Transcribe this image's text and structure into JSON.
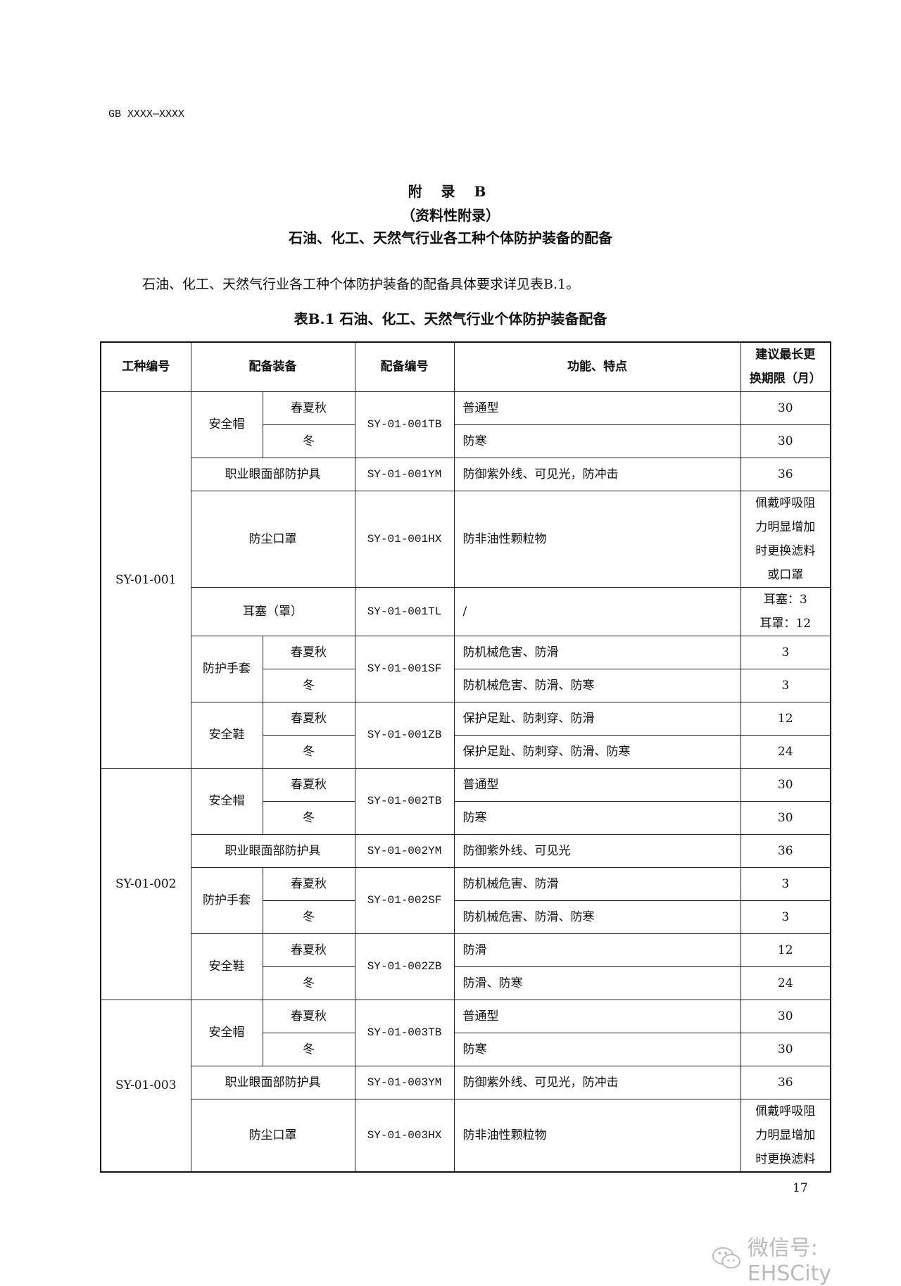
{
  "header": {
    "doc_code": "GB XXXX—XXXX"
  },
  "appendix": {
    "label": "附 录 B",
    "type": "（资料性附录）",
    "title": "石油、化工、天然气行业各工种个体防护装备的配备"
  },
  "intro": "石油、化工、天然气行业各工种个体防护装备的配备具体要求详见表B.1。",
  "table": {
    "caption": "表B.1 石油、化工、天然气行业个体防护装备配备",
    "headers": [
      {
        "t": "工种编号"
      },
      {
        "t": "配备装备",
        "cs": 2
      },
      {
        "t": "配备编号"
      },
      {
        "t": "功能、特点"
      },
      {
        "t": "建议最长更\n换期限（月）"
      }
    ],
    "rows": [
      [
        {
          "t": "SY-01-001",
          "rs": 9
        },
        {
          "t": "安全帽",
          "rs": 2
        },
        {
          "t": "春夏秋"
        },
        {
          "t": "SY-01-001TB",
          "rs": 2,
          "k": "code"
        },
        {
          "t": "普通型",
          "k": "left"
        },
        {
          "t": "30"
        }
      ],
      [
        {
          "t": "冬"
        },
        {
          "t": "防寒",
          "k": "left"
        },
        {
          "t": "30"
        }
      ],
      [
        {
          "t": "职业眼面部防护具",
          "cs": 2
        },
        {
          "t": "SY-01-001YM",
          "k": "code"
        },
        {
          "t": "防御紫外线、可见光，防冲击",
          "k": "left"
        },
        {
          "t": "36"
        }
      ],
      [
        {
          "t": "防尘口罩",
          "cs": 2
        },
        {
          "t": "SY-01-001HX",
          "k": "code"
        },
        {
          "t": "防非油性颗粒物",
          "k": "left"
        },
        {
          "t": "佩戴呼吸阻\n力明显增加\n时更换滤料\n或口罩"
        }
      ],
      [
        {
          "t": "耳塞（罩）",
          "cs": 2
        },
        {
          "t": "SY-01-001TL",
          "k": "code"
        },
        {
          "t": "/",
          "k": "left"
        },
        {
          "t": "耳塞：3\n耳罩：12"
        }
      ],
      [
        {
          "t": "防护手套",
          "rs": 2
        },
        {
          "t": "春夏秋"
        },
        {
          "t": "SY-01-001SF",
          "rs": 2,
          "k": "code"
        },
        {
          "t": "防机械危害、防滑",
          "k": "left"
        },
        {
          "t": "3"
        }
      ],
      [
        {
          "t": "冬"
        },
        {
          "t": "防机械危害、防滑、防寒",
          "k": "left"
        },
        {
          "t": "3"
        }
      ],
      [
        {
          "t": "安全鞋",
          "rs": 2
        },
        {
          "t": "春夏秋"
        },
        {
          "t": "SY-01-001ZB",
          "rs": 2,
          "k": "code"
        },
        {
          "t": "保护足趾、防刺穿、防滑",
          "k": "left"
        },
        {
          "t": "12"
        }
      ],
      [
        {
          "t": "冬"
        },
        {
          "t": "保护足趾、防刺穿、防滑、防寒",
          "k": "left"
        },
        {
          "t": "24"
        }
      ],
      [
        {
          "t": "SY-01-002",
          "rs": 7
        },
        {
          "t": "安全帽",
          "rs": 2
        },
        {
          "t": "春夏秋"
        },
        {
          "t": "SY-01-002TB",
          "rs": 2,
          "k": "code"
        },
        {
          "t": "普通型",
          "k": "left"
        },
        {
          "t": "30"
        }
      ],
      [
        {
          "t": "冬"
        },
        {
          "t": "防寒",
          "k": "left"
        },
        {
          "t": "30"
        }
      ],
      [
        {
          "t": "职业眼面部防护具",
          "cs": 2
        },
        {
          "t": "SY-01-002YM",
          "k": "code"
        },
        {
          "t": "防御紫外线、可见光",
          "k": "left"
        },
        {
          "t": "36"
        }
      ],
      [
        {
          "t": "防护手套",
          "rs": 2
        },
        {
          "t": "春夏秋"
        },
        {
          "t": "SY-01-002SF",
          "rs": 2,
          "k": "code"
        },
        {
          "t": "防机械危害、防滑",
          "k": "left"
        },
        {
          "t": "3"
        }
      ],
      [
        {
          "t": "冬"
        },
        {
          "t": "防机械危害、防滑、防寒",
          "k": "left"
        },
        {
          "t": "3"
        }
      ],
      [
        {
          "t": "安全鞋",
          "rs": 2
        },
        {
          "t": "春夏秋"
        },
        {
          "t": "SY-01-002ZB",
          "rs": 2,
          "k": "code"
        },
        {
          "t": "防滑",
          "k": "left"
        },
        {
          "t": "12"
        }
      ],
      [
        {
          "t": "冬"
        },
        {
          "t": "防滑、防寒",
          "k": "left"
        },
        {
          "t": "24"
        }
      ],
      [
        {
          "t": "SY-01-003",
          "rs": 4
        },
        {
          "t": "安全帽",
          "rs": 2
        },
        {
          "t": "春夏秋"
        },
        {
          "t": "SY-01-003TB",
          "rs": 2,
          "k": "code"
        },
        {
          "t": "普通型",
          "k": "left"
        },
        {
          "t": "30"
        }
      ],
      [
        {
          "t": "冬"
        },
        {
          "t": "防寒",
          "k": "left"
        },
        {
          "t": "30"
        }
      ],
      [
        {
          "t": "职业眼面部防护具",
          "cs": 2
        },
        {
          "t": "SY-01-003YM",
          "k": "code"
        },
        {
          "t": "防御紫外线、可见光，防冲击",
          "k": "left"
        },
        {
          "t": "36"
        }
      ],
      [
        {
          "t": "防尘口罩",
          "cs": 2
        },
        {
          "t": "SY-01-003HX",
          "k": "code"
        },
        {
          "t": "防非油性颗粒物",
          "k": "left"
        },
        {
          "t": "佩戴呼吸阻\n力明显增加\n时更换滤料"
        }
      ]
    ]
  },
  "footer": {
    "page_number": "17"
  },
  "watermark": {
    "text": "微信号: EHSCity",
    "icon": "wechat-icon"
  }
}
